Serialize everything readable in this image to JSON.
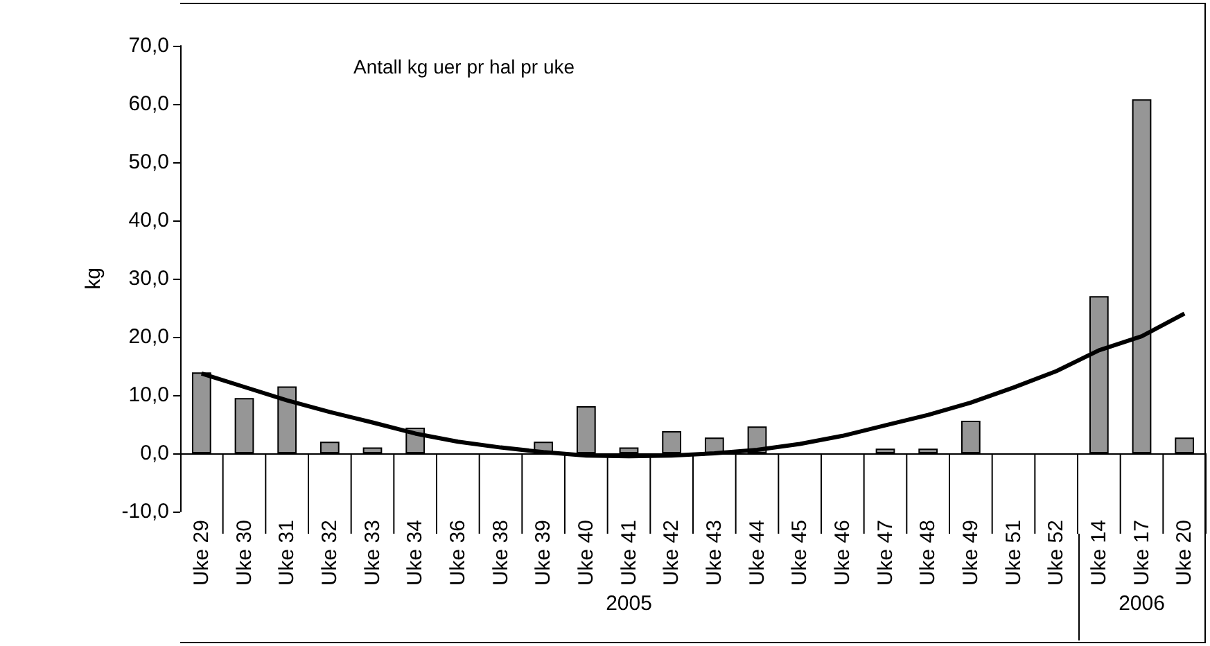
{
  "chart_data": {
    "type": "bar",
    "title": "Antall kg uer pr hal pr uke",
    "ylabel": "kg",
    "categories": [
      "Uke 29",
      "Uke 30",
      "Uke 31",
      "Uke 32",
      "Uke 33",
      "Uke 34",
      "Uke 36",
      "Uke 38",
      "Uke 39",
      "Uke 40",
      "Uke 41",
      "Uke 42",
      "Uke 43",
      "Uke 44",
      "Uke 45",
      "Uke 46",
      "Uke 47",
      "Uke 48",
      "Uke 49",
      "Uke 51",
      "Uke 52",
      "Uke 14",
      "Uke 17",
      "Uke 20"
    ],
    "series": [
      {
        "color": "#969696",
        "values": [
          13.9,
          9.5,
          11.5,
          2.0,
          1.0,
          4.4,
          0,
          0,
          2.0,
          8.1,
          1.0,
          3.8,
          2.7,
          4.6,
          0,
          0,
          0.8,
          0.8,
          5.6,
          0,
          0,
          27.0,
          60.8,
          2.7
        ]
      },
      {
        "type": "line",
        "color": "#000000",
        "values": [
          13.7,
          11.4,
          9.1,
          7.1,
          5.3,
          3.4,
          2.0,
          1.0,
          0.2,
          -0.4,
          -0.5,
          -0.4,
          0,
          0.6,
          1.6,
          3.0,
          4.8,
          6.6,
          8.7,
          11.3,
          14.1,
          17.7,
          20.1,
          24.0
        ]
      }
    ],
    "ylim": [
      -10,
      70
    ],
    "yticks": [
      {
        "value": -10,
        "label": "-10,0"
      },
      {
        "value": 0,
        "label": "0,0"
      },
      {
        "value": 10,
        "label": "10,0"
      },
      {
        "value": 20,
        "label": "20,0"
      },
      {
        "value": 30,
        "label": "30,0"
      },
      {
        "value": 40,
        "label": "40,0"
      },
      {
        "value": 50,
        "label": "50,0"
      },
      {
        "value": 60,
        "label": "60,0"
      },
      {
        "value": 70,
        "label": "70,0"
      }
    ],
    "annotations": [
      "2005",
      "2006"
    ],
    "marker": "none"
  }
}
